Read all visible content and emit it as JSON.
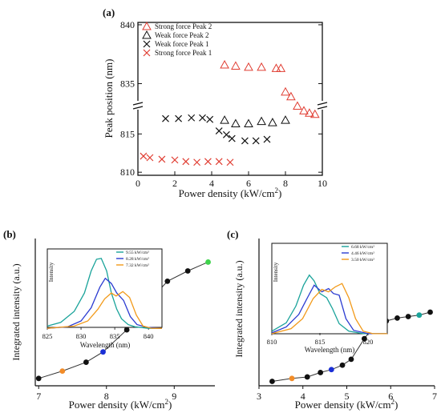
{
  "chart_data": [
    {
      "id": "a",
      "panel_label": "(a)",
      "type": "scatter",
      "xlabel": "Power density (kW/cm",
      "xlabel_sup": "2",
      "xlabel_close": ")",
      "ylabel": "Peak position (nm)",
      "xlim": [
        0,
        10
      ],
      "x_ticks": [
        0,
        2,
        4,
        6,
        8,
        10
      ],
      "y_upper_range": [
        833.2,
        840.2
      ],
      "y_lower_range": [
        809.6,
        818.8
      ],
      "y_ticks_upper": [
        835,
        840
      ],
      "y_ticks_lower": [
        810,
        815
      ],
      "axis_break": true,
      "legend_position": "top-left",
      "series": [
        {
          "name": "Strong force Peak 2",
          "marker": "triangle",
          "color": "#e03c31",
          "x": [
            4.7,
            5.3,
            6.0,
            6.7,
            7.5,
            7.75,
            8.0,
            8.3,
            8.65,
            9.0,
            9.3,
            9.6
          ],
          "y": [
            836.6,
            836.5,
            836.4,
            836.4,
            836.3,
            836.3,
            834.3,
            833.9,
            833.1,
            832.7,
            832.5,
            832.4
          ]
        },
        {
          "name": "Weak force Peak 2",
          "marker": "triangle",
          "color": "#111111",
          "x": [
            4.7,
            5.3,
            6.0,
            6.7,
            7.3,
            8.0
          ],
          "y": [
            831.9,
            831.6,
            831.6,
            831.8,
            831.7,
            831.9
          ]
        },
        {
          "name": "Weak force Peak 1",
          "marker": "x",
          "color": "#111111",
          "x": [
            1.5,
            2.2,
            2.9,
            3.5,
            3.9,
            4.4,
            4.8,
            5.1,
            5.8,
            6.4,
            7.0
          ],
          "y": [
            817.0,
            817.0,
            817.1,
            817.1,
            816.9,
            815.4,
            814.9,
            814.4,
            814.1,
            814.1,
            814.3
          ]
        },
        {
          "name": "Strong force Peak 1",
          "marker": "x",
          "color": "#e03c31",
          "x": [
            0.3,
            0.65,
            1.3,
            2.0,
            2.6,
            3.2,
            3.8,
            4.4,
            5.0
          ],
          "y": [
            812.1,
            811.9,
            811.7,
            811.6,
            811.4,
            811.3,
            811.4,
            811.4,
            811.3
          ]
        }
      ]
    },
    {
      "id": "b",
      "panel_label": "(b)",
      "type": "line",
      "xlabel": "Power density (kW/cm",
      "xlabel_sup": "2",
      "xlabel_close": ")",
      "ylabel": "Integrated intensity (a.u.)",
      "xlim": [
        6.95,
        9.6
      ],
      "x_ticks": [
        7,
        8,
        9
      ],
      "ylim": [
        0,
        100
      ],
      "points": {
        "x": [
          7.0,
          7.35,
          7.7,
          7.95,
          8.3,
          8.6,
          8.9,
          9.2,
          9.5
        ],
        "y": [
          5,
          10,
          16,
          23,
          38,
          56,
          71,
          78,
          84
        ],
        "colors": [
          "#111111",
          "#f28c28",
          "#111111",
          "#1a2fd6",
          "#111111",
          "#111111",
          "#111111",
          "#111111",
          "#3fd34c"
        ]
      },
      "inset": {
        "type": "line",
        "xlabel": "Wavelength (nm)",
        "ylabel": "Intensity",
        "xlim": [
          825,
          842
        ],
        "x_ticks": [
          825,
          830,
          835,
          840
        ],
        "ylim": [
          0,
          1.1
        ],
        "legend": [
          {
            "name": "9.55 kW/cm²",
            "color": "#1aa39a"
          },
          {
            "name": "8.28 kW/cm²",
            "color": "#2b3bd1"
          },
          {
            "name": "7.32 kW/cm²",
            "color": "#f29a1a"
          }
        ],
        "series": [
          {
            "name": "9.55 kW/cm²",
            "color": "#1aa39a",
            "x": [
              825,
              827,
              829,
              830.5,
              831.5,
              832.3,
              833,
              833.8,
              834.5,
              835.3,
              836,
              837,
              838,
              840,
              842
            ],
            "y": [
              0.05,
              0.1,
              0.25,
              0.5,
              0.8,
              0.96,
              0.97,
              0.8,
              0.5,
              0.28,
              0.15,
              0.07,
              0.04,
              0.02,
              0.02
            ]
          },
          {
            "name": "8.28 kW/cm²",
            "color": "#2b3bd1",
            "x": [
              825,
              828,
              830,
              831.5,
              832.8,
              833.6,
              834.5,
              835.3,
              836.3,
              837.3,
              838.3,
              840,
              842
            ],
            "y": [
              0.02,
              0.04,
              0.12,
              0.3,
              0.58,
              0.7,
              0.63,
              0.5,
              0.4,
              0.18,
              0.07,
              0.03,
              0.02
            ]
          },
          {
            "name": "7.32 kW/cm²",
            "color": "#f29a1a",
            "x": [
              825,
              829,
              831,
              832.5,
              833.5,
              834.5,
              835.2,
              836.2,
              837.2,
              838.2,
              839.2,
              840.5,
              842
            ],
            "y": [
              0.02,
              0.05,
              0.12,
              0.28,
              0.42,
              0.5,
              0.46,
              0.52,
              0.44,
              0.2,
              0.05,
              0.02,
              0.02
            ]
          }
        ]
      }
    },
    {
      "id": "c",
      "panel_label": "(c)",
      "type": "line",
      "xlabel": "Power density (kW/cm",
      "xlabel_sup": "2",
      "xlabel_close": ")",
      "ylabel": "Integrated intensity (a.u.)",
      "xlim": [
        3,
        7
      ],
      "x_ticks": [
        3,
        4,
        5,
        6,
        7
      ],
      "ylim": [
        0,
        100
      ],
      "points": {
        "x": [
          3.3,
          3.75,
          4.1,
          4.4,
          4.65,
          4.9,
          5.1,
          5.4,
          5.65,
          5.9,
          6.15,
          6.4,
          6.65,
          6.9
        ],
        "y": [
          3,
          5,
          6,
          9,
          11,
          14,
          18,
          32,
          42,
          44,
          46,
          47,
          48,
          50
        ],
        "colors": [
          "#111111",
          "#f28c28",
          "#111111",
          "#111111",
          "#1a2fd6",
          "#111111",
          "#111111",
          "#111111",
          "#111111",
          "#111111",
          "#111111",
          "#111111",
          "#1aa39a",
          "#111111"
        ]
      },
      "inset": {
        "type": "line",
        "xlabel": "Wavelength (nm)",
        "ylabel": "Intensity",
        "xlim": [
          810,
          822
        ],
        "x_ticks": [
          810,
          815,
          820
        ],
        "ylim": [
          0,
          1.1
        ],
        "legend": [
          {
            "name": "6.68 kW/cm²",
            "color": "#1aa39a"
          },
          {
            "name": "4.46 kW/cm²",
            "color": "#2b3bd1"
          },
          {
            "name": "3.50 kW/cm²",
            "color": "#f29a1a"
          }
        ],
        "series": [
          {
            "name": "6.68 kW/cm²",
            "color": "#1aa39a",
            "x": [
              810,
              811.5,
              812.5,
              813.3,
              813.9,
              814.4,
              815,
              815.7,
              816.3,
              817,
              818,
              819.5,
              822
            ],
            "y": [
              0.05,
              0.15,
              0.35,
              0.6,
              0.72,
              0.65,
              0.5,
              0.45,
              0.32,
              0.14,
              0.05,
              0.02,
              0.02
            ]
          },
          {
            "name": "4.46 kW/cm²",
            "color": "#2b3bd1",
            "x": [
              810,
              811.5,
              812.8,
              813.7,
              814.4,
              815.2,
              815.9,
              816.4,
              817,
              817.7,
              818.5,
              820,
              822
            ],
            "y": [
              0.03,
              0.1,
              0.25,
              0.45,
              0.6,
              0.52,
              0.56,
              0.5,
              0.48,
              0.2,
              0.06,
              0.02,
              0.02
            ]
          },
          {
            "name": "3.50 kW/cm²",
            "color": "#f29a1a",
            "x": [
              810,
              812,
              813.2,
              814.3,
              815.2,
              815.9,
              816.6,
              817.3,
              818,
              818.7,
              819.5,
              820.5,
              822
            ],
            "y": [
              0.02,
              0.08,
              0.2,
              0.44,
              0.55,
              0.52,
              0.58,
              0.62,
              0.45,
              0.2,
              0.05,
              0.02,
              0.02
            ]
          }
        ]
      }
    }
  ]
}
